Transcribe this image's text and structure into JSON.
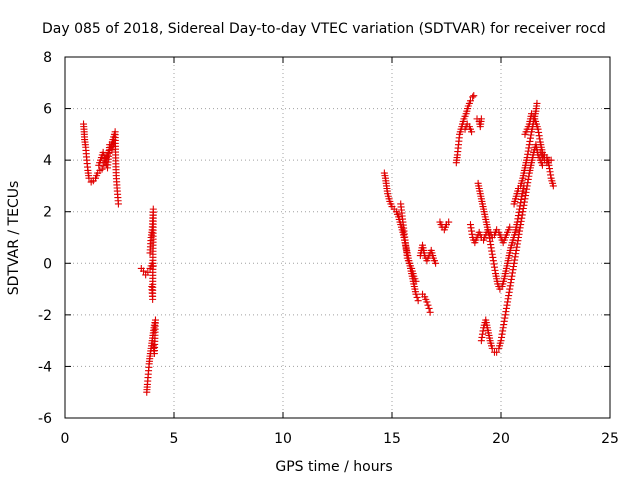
{
  "chart_data": {
    "type": "scatter",
    "title": "Day 085 of 2018, Sidereal Day-to-day VTEC variation (SDTVAR) for receiver rocd",
    "xlabel": "GPS time / hours",
    "ylabel": "SDTVAR / TECUs",
    "xlim": [
      0,
      25
    ],
    "ylim": [
      -6,
      8
    ],
    "xticks": [
      0,
      5,
      10,
      15,
      20,
      25
    ],
    "yticks": [
      -6,
      -4,
      -2,
      0,
      2,
      4,
      6,
      8
    ],
    "grid": true,
    "legend": "none",
    "marker": "plus",
    "color": "#e00000",
    "series": [
      {
        "name": "SDTVAR",
        "segments": [
          [
            [
              0.85,
              5.4
            ],
            [
              0.88,
              5.1
            ],
            [
              0.9,
              4.8
            ],
            [
              0.95,
              4.5
            ],
            [
              1.0,
              4.0
            ],
            [
              1.05,
              3.6
            ],
            [
              1.1,
              3.3
            ],
            [
              1.2,
              3.15
            ],
            [
              1.3,
              3.2
            ],
            [
              1.4,
              3.3
            ],
            [
              1.5,
              3.5
            ],
            [
              1.6,
              3.6
            ],
            [
              1.7,
              3.65
            ],
            [
              1.8,
              3.9
            ],
            [
              1.9,
              4.1
            ],
            [
              2.0,
              4.3
            ],
            [
              2.1,
              4.5
            ],
            [
              2.2,
              4.8
            ],
            [
              2.3,
              5.1
            ],
            [
              2.32,
              4.2
            ],
            [
              2.35,
              3.4
            ],
            [
              2.4,
              2.8
            ],
            [
              2.45,
              2.3
            ]
          ],
          [
            [
              1.55,
              3.8
            ],
            [
              1.75,
              4.3
            ],
            [
              1.95,
              3.7
            ],
            [
              2.05,
              4.6
            ],
            [
              2.15,
              4.4
            ],
            [
              2.25,
              4.65
            ]
          ],
          [
            [
              3.5,
              -0.2
            ],
            [
              3.6,
              -0.3
            ],
            [
              3.7,
              -0.45
            ],
            [
              3.8,
              -0.35
            ],
            [
              3.9,
              -0.2
            ],
            [
              4.0,
              0.0
            ],
            [
              4.05,
              -0.1
            ]
          ],
          [
            [
              3.75,
              -5.0
            ],
            [
              3.78,
              -4.7
            ],
            [
              3.82,
              -4.3
            ],
            [
              3.86,
              -3.9
            ],
            [
              3.9,
              -3.6
            ],
            [
              3.95,
              -3.3
            ],
            [
              4.0,
              -3.0
            ],
            [
              4.05,
              -2.7
            ],
            [
              4.1,
              -2.4
            ],
            [
              4.15,
              -2.2
            ],
            [
              4.1,
              -3.5
            ],
            [
              4.05,
              -3.2
            ]
          ],
          [
            [
              3.9,
              0.4
            ],
            [
              3.95,
              1.0
            ],
            [
              4.0,
              1.3
            ],
            [
              4.05,
              2.1
            ],
            [
              4.02,
              -1.4
            ],
            [
              3.98,
              -0.9
            ]
          ],
          [
            [
              14.65,
              3.5
            ],
            [
              14.7,
              3.3
            ],
            [
              14.75,
              3.0
            ],
            [
              14.8,
              2.7
            ],
            [
              14.9,
              2.4
            ],
            [
              15.0,
              2.2
            ],
            [
              15.1,
              2.1
            ],
            [
              15.2,
              2.0
            ],
            [
              15.3,
              1.8
            ],
            [
              15.4,
              1.5
            ],
            [
              15.5,
              1.2
            ],
            [
              15.6,
              0.8
            ],
            [
              15.7,
              0.4
            ],
            [
              15.8,
              0.0
            ],
            [
              15.9,
              -0.4
            ],
            [
              16.0,
              -0.8
            ],
            [
              16.1,
              -1.2
            ],
            [
              16.2,
              -1.45
            ]
          ],
          [
            [
              15.4,
              2.3
            ],
            [
              15.7,
              0.2
            ],
            [
              15.9,
              -0.2
            ],
            [
              16.0,
              -0.5
            ],
            [
              16.1,
              -0.7
            ]
          ],
          [
            [
              16.3,
              0.3
            ],
            [
              16.4,
              0.7
            ],
            [
              16.5,
              0.3
            ],
            [
              16.6,
              0.1
            ],
            [
              16.7,
              0.3
            ],
            [
              16.8,
              0.5
            ],
            [
              16.9,
              0.2
            ],
            [
              17.0,
              0.0
            ]
          ],
          [
            [
              16.4,
              -1.2
            ],
            [
              16.5,
              -1.3
            ],
            [
              16.6,
              -1.5
            ],
            [
              16.7,
              -1.75
            ],
            [
              16.75,
              -1.9
            ]
          ],
          [
            [
              17.2,
              1.6
            ],
            [
              17.3,
              1.4
            ],
            [
              17.4,
              1.3
            ],
            [
              17.5,
              1.5
            ],
            [
              17.6,
              1.6
            ]
          ],
          [
            [
              17.95,
              3.9
            ],
            [
              18.0,
              4.2
            ],
            [
              18.05,
              4.6
            ],
            [
              18.1,
              5.0
            ],
            [
              18.2,
              5.3
            ],
            [
              18.3,
              5.6
            ],
            [
              18.4,
              5.8
            ],
            [
              18.5,
              6.1
            ],
            [
              18.6,
              6.3
            ],
            [
              18.7,
              6.45
            ],
            [
              18.75,
              6.5
            ]
          ],
          [
            [
              18.35,
              5.2
            ],
            [
              18.45,
              5.4
            ],
            [
              18.55,
              5.3
            ],
            [
              18.65,
              5.1
            ]
          ],
          [
            [
              18.9,
              5.6
            ],
            [
              19.0,
              5.5
            ],
            [
              19.05,
              5.3
            ],
            [
              19.1,
              5.6
            ]
          ],
          [
            [
              18.6,
              1.5
            ],
            [
              18.7,
              1.0
            ],
            [
              18.8,
              0.8
            ],
            [
              18.9,
              1.0
            ],
            [
              19.0,
              1.2
            ],
            [
              19.1,
              1.0
            ],
            [
              19.2,
              0.9
            ],
            [
              19.3,
              1.1
            ],
            [
              19.4,
              1.3
            ],
            [
              19.5,
              1.2
            ],
            [
              19.6,
              1.0
            ],
            [
              19.7,
              1.1
            ],
            [
              19.8,
              1.3
            ],
            [
              19.9,
              1.2
            ],
            [
              20.0,
              1.0
            ],
            [
              20.1,
              0.8
            ],
            [
              20.2,
              1.0
            ],
            [
              20.3,
              1.2
            ],
            [
              20.4,
              1.4
            ]
          ],
          [
            [
              18.95,
              3.1
            ],
            [
              19.05,
              2.7
            ],
            [
              19.15,
              2.3
            ],
            [
              19.25,
              1.9
            ],
            [
              19.35,
              1.5
            ],
            [
              19.45,
              1.1
            ],
            [
              19.55,
              0.6
            ],
            [
              19.65,
              0.1
            ],
            [
              19.75,
              -0.4
            ],
            [
              19.85,
              -0.8
            ],
            [
              19.95,
              -1.0
            ],
            [
              20.05,
              -0.9
            ],
            [
              20.15,
              -0.6
            ],
            [
              20.25,
              -0.2
            ],
            [
              20.35,
              0.2
            ],
            [
              20.45,
              0.6
            ],
            [
              20.55,
              0.9
            ],
            [
              20.65,
              1.2
            ],
            [
              20.75,
              1.6
            ],
            [
              20.85,
              2.1
            ],
            [
              20.95,
              2.6
            ],
            [
              21.05,
              3.0
            ]
          ],
          [
            [
              19.1,
              -3.0
            ],
            [
              19.2,
              -2.5
            ],
            [
              19.3,
              -2.2
            ],
            [
              19.4,
              -2.6
            ],
            [
              19.5,
              -3.0
            ],
            [
              19.6,
              -3.3
            ],
            [
              19.7,
              -3.45
            ],
            [
              19.8,
              -3.45
            ],
            [
              19.9,
              -3.3
            ],
            [
              20.0,
              -3.0
            ],
            [
              20.1,
              -2.5
            ],
            [
              20.2,
              -2.0
            ],
            [
              20.3,
              -1.5
            ],
            [
              20.4,
              -1.0
            ],
            [
              20.5,
              -0.5
            ],
            [
              20.6,
              0.0
            ],
            [
              20.7,
              0.5
            ],
            [
              20.8,
              1.0
            ],
            [
              20.9,
              1.5
            ],
            [
              21.0,
              2.0
            ],
            [
              21.1,
              2.5
            ],
            [
              21.2,
              3.0
            ],
            [
              21.3,
              3.5
            ],
            [
              21.4,
              3.9
            ],
            [
              21.5,
              4.3
            ],
            [
              21.6,
              4.6
            ],
            [
              21.7,
              4.2
            ],
            [
              21.8,
              4.0
            ],
            [
              21.9,
              3.8
            ]
          ],
          [
            [
              20.6,
              2.3
            ],
            [
              20.7,
              2.6
            ],
            [
              20.8,
              2.9
            ],
            [
              20.9,
              3.0
            ],
            [
              21.0,
              3.3
            ],
            [
              21.1,
              3.7
            ],
            [
              21.2,
              4.1
            ],
            [
              21.3,
              4.6
            ],
            [
              21.4,
              5.1
            ],
            [
              21.5,
              5.5
            ],
            [
              21.6,
              5.9
            ],
            [
              21.65,
              6.2
            ]
          ],
          [
            [
              21.1,
              5.0
            ],
            [
              21.2,
              5.2
            ],
            [
              21.3,
              5.4
            ],
            [
              21.4,
              5.8
            ],
            [
              21.55,
              5.6
            ],
            [
              21.7,
              5.2
            ],
            [
              21.8,
              4.7
            ],
            [
              21.9,
              4.3
            ],
            [
              22.0,
              4.0
            ],
            [
              22.1,
              3.9
            ],
            [
              22.2,
              4.0
            ],
            [
              22.3,
              4.0
            ]
          ],
          [
            [
              21.8,
              4.3
            ],
            [
              21.9,
              4.1
            ],
            [
              22.0,
              4.2
            ],
            [
              22.1,
              4.1
            ],
            [
              22.2,
              3.8
            ],
            [
              22.3,
              3.3
            ],
            [
              22.4,
              3.0
            ]
          ]
        ]
      }
    ]
  }
}
